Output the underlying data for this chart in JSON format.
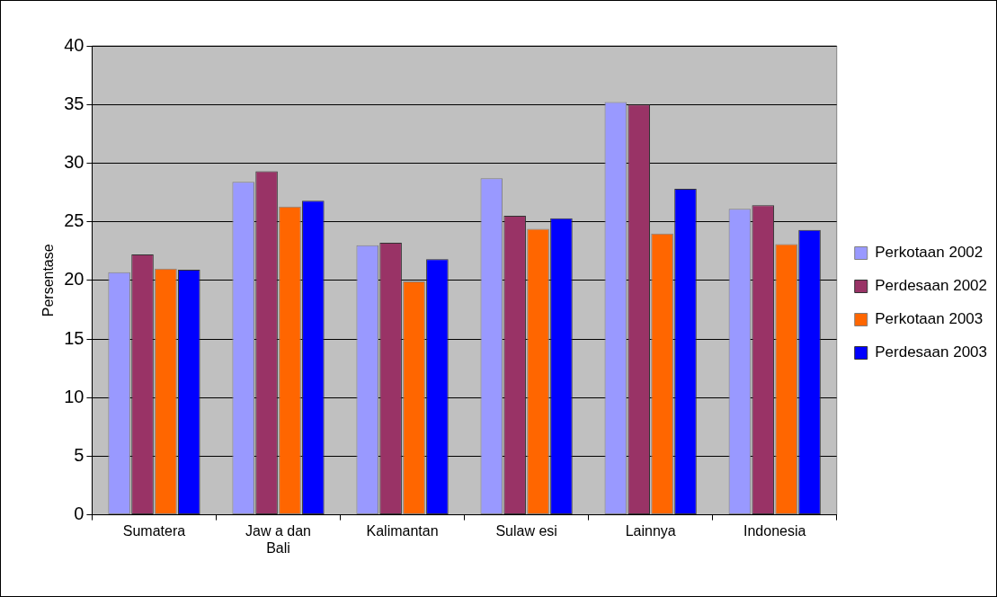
{
  "chart_data": {
    "type": "bar",
    "ylabel": "Persentase",
    "categories": [
      "Sumatera",
      "Jaw a dan Bali",
      "Kalimantan",
      "Sulaw esi",
      "Lainnya",
      "Indonesia"
    ],
    "series": [
      {
        "name": "Perkotaan 2002",
        "color": "#9999ff",
        "values": [
          20.7,
          28.4,
          23.0,
          28.7,
          35.2,
          26.1
        ]
      },
      {
        "name": "Perdesaan 2002",
        "color": "#993366",
        "values": [
          22.2,
          29.3,
          23.2,
          25.5,
          35.0,
          26.4
        ]
      },
      {
        "name": "Perkotaan 2003",
        "color": "#ff6600",
        "values": [
          21.0,
          26.3,
          19.9,
          24.4,
          24.0,
          23.1
        ]
      },
      {
        "name": "Perdesaan 2003",
        "color": "#0000ff",
        "values": [
          20.9,
          26.8,
          21.8,
          25.3,
          27.8,
          24.3
        ]
      }
    ],
    "ylim": [
      0,
      40
    ],
    "yticks": [
      0,
      5,
      10,
      15,
      20,
      25,
      30,
      35,
      40
    ],
    "grid": "y",
    "legend": "right"
  }
}
